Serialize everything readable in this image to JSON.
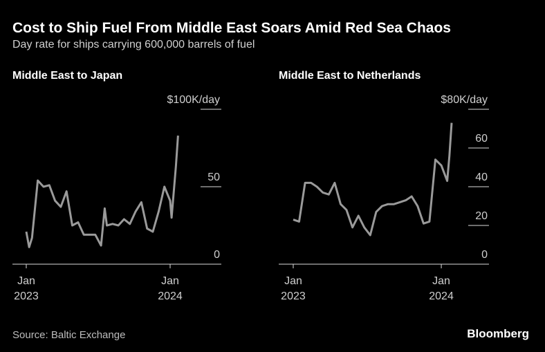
{
  "title": "Cost to Ship Fuel From Middle East Soars Amid Red Sea Chaos",
  "subtitle": "Day rate for ships carrying 600,000 barrels of fuel",
  "source": "Source: Baltic Exchange",
  "brand": "Bloomberg",
  "chart_data": [
    {
      "type": "line",
      "title": "Middle East to Japan",
      "color": "#9a9a9a",
      "x": [
        2023.0,
        2023.02,
        2023.04,
        2023.08,
        2023.12,
        2023.16,
        2023.2,
        2023.24,
        2023.28,
        2023.32,
        2023.36,
        2023.4,
        2023.44,
        2023.48,
        2023.52,
        2023.545,
        2023.56,
        2023.6,
        2023.64,
        2023.68,
        2023.72,
        2023.76,
        2023.8,
        2023.84,
        2023.88,
        2023.92,
        2023.96,
        2024.0,
        2024.01,
        2024.04,
        2024.055
      ],
      "values": [
        21,
        11,
        17,
        54,
        50,
        51,
        41,
        37,
        47,
        25,
        27,
        19,
        19,
        19,
        12,
        36,
        25,
        26,
        25,
        29,
        26,
        34,
        40,
        23,
        21,
        34,
        50,
        41,
        30,
        63,
        83
      ],
      "xlim": [
        2022.904,
        2024.298
      ],
      "ylim": [
        0,
        100
      ],
      "xticks": [
        {
          "value": 2023,
          "label": "Jan\n2023"
        },
        {
          "value": 2024,
          "label": "Jan\n2024"
        }
      ],
      "yticks": [
        0,
        50,
        {
          "value": 100,
          "label": "$100K/day"
        }
      ]
    },
    {
      "type": "line",
      "title": "Middle East to Netherlands",
      "color": "#9a9a9a",
      "x": [
        2023.0,
        2023.04,
        2023.08,
        2023.12,
        2023.16,
        2023.2,
        2023.24,
        2023.28,
        2023.32,
        2023.36,
        2023.4,
        2023.44,
        2023.48,
        2023.52,
        2023.56,
        2023.6,
        2023.64,
        2023.68,
        2023.72,
        2023.76,
        2023.8,
        2023.84,
        2023.88,
        2023.92,
        2023.96,
        2024.0,
        2024.04,
        2024.055,
        2024.07
      ],
      "values": [
        23,
        22,
        42,
        42,
        40,
        37,
        36,
        42,
        31,
        28,
        19,
        25,
        19,
        15,
        27,
        30,
        31,
        31,
        32,
        33,
        35,
        30,
        21,
        22,
        54,
        51,
        43,
        56,
        73
      ],
      "xlim": [
        2022.902,
        2024.266
      ],
      "ylim": [
        0,
        80
      ],
      "xticks": [
        {
          "value": 2023,
          "label": "Jan\n2023"
        },
        {
          "value": 2024,
          "label": "Jan\n2024"
        }
      ],
      "yticks": [
        0,
        20,
        40,
        60,
        {
          "value": 80,
          "label": "$80K/day"
        }
      ]
    }
  ]
}
